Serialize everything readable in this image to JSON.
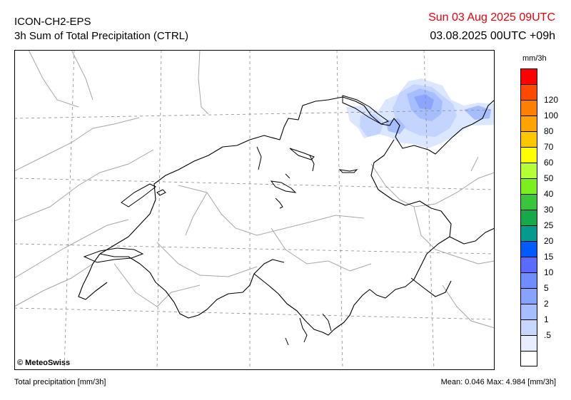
{
  "header": {
    "model": "ICON-CH2-EPS",
    "product": "3h Sum of Total Precipitation (CTRL)",
    "valid_time": "Sun 03 Aug 2025 09UTC",
    "run_time": "03.08.2025 00UTC +09h"
  },
  "map": {
    "credit": "© MeteoSwiss",
    "colors": {
      "grid": "#8c8c8c",
      "borders": "#000000",
      "regions": "#a6a6a6",
      "lakes": "#000000"
    },
    "precip_colors": [
      "#dae5ff",
      "#bfd2ff",
      "#a3bbfe",
      "#86a1fd"
    ]
  },
  "legend": {
    "unit": "mm/3h",
    "levels": [
      {
        "label": "",
        "color": "#ff0000"
      },
      {
        "label": "120",
        "color": "#ff4800"
      },
      {
        "label": "100",
        "color": "#ff7f00"
      },
      {
        "label": "80",
        "color": "#ffa300"
      },
      {
        "label": "70",
        "color": "#ffc700"
      },
      {
        "label": "60",
        "color": "#ffff00"
      },
      {
        "label": "50",
        "color": "#b5ff37"
      },
      {
        "label": "40",
        "color": "#7cf01f"
      },
      {
        "label": "30",
        "color": "#3ac63a"
      },
      {
        "label": "25",
        "color": "#16a94a"
      },
      {
        "label": "20",
        "color": "#069a8e"
      },
      {
        "label": "15",
        "color": "#005cff"
      },
      {
        "label": "10",
        "color": "#5a6bff"
      },
      {
        "label": "5",
        "color": "#6f8dff"
      },
      {
        "label": "2",
        "color": "#86a3ff"
      },
      {
        "label": "1",
        "color": "#a6bdff"
      },
      {
        "label": ".5",
        "color": "#c8d7ff"
      },
      {
        "label": "",
        "color": "#e6eeff"
      },
      {
        "label": "",
        "color": "#ffffff"
      }
    ]
  },
  "footer": {
    "variable": "Total precipitation [mm/3h]",
    "stats": "Mean:  0.046 Max:  4.984 [mm/3h]"
  }
}
